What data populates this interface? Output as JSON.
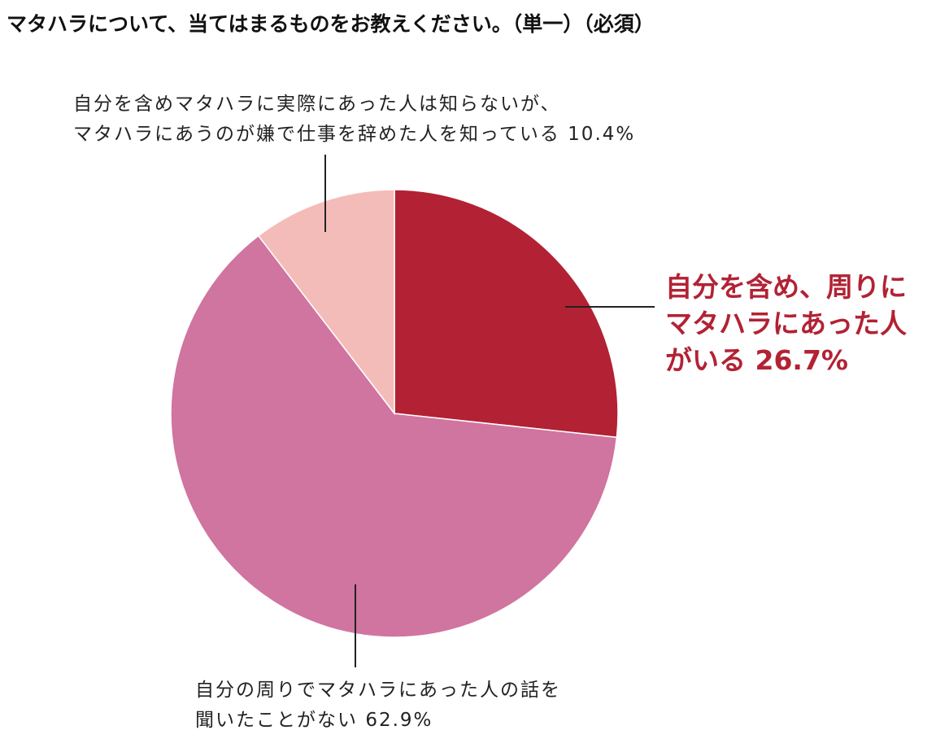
{
  "chart_data": {
    "type": "pie",
    "title": "マタハラについて、当てはまるものをお教えください。（単一）（必須）",
    "categories": [
      "自分を含め、周りに\nマタハラにあった人\nがいる",
      "自分の周りでマタハラにあった人の話を\n聞いたことがない",
      "自分を含めマタハラに実際にあった人は知らないが、\nマタハラにあうのが嫌で仕事を辞めた人を知っている"
    ],
    "values": [
      26.7,
      62.9,
      10.4
    ],
    "value_labels": [
      "26.7%",
      "62.9%",
      "10.4%"
    ],
    "colors": [
      "#b22234",
      "#d074a0",
      "#f4bcb8"
    ]
  }
}
